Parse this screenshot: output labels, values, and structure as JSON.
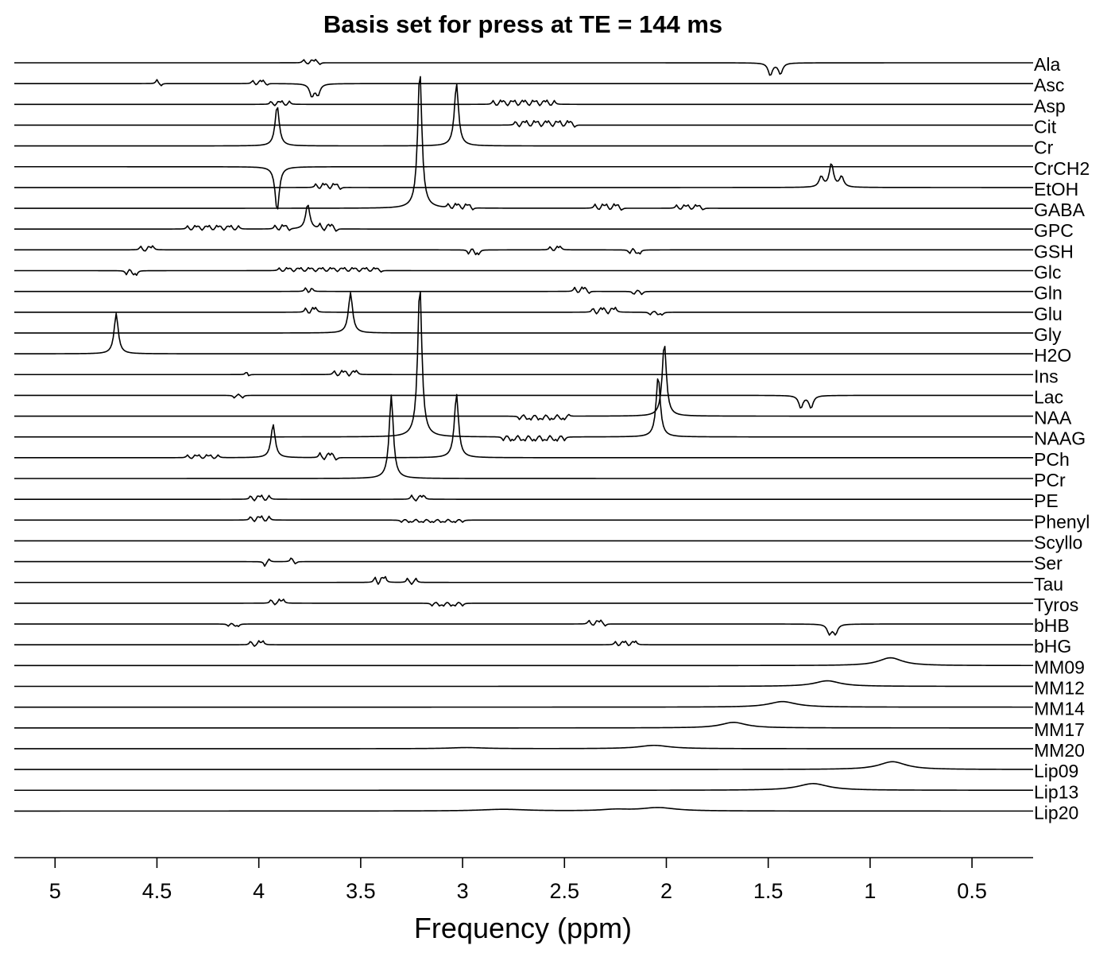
{
  "chart_data": {
    "type": "line",
    "title": "Basis set for press at TE = 144 ms",
    "xlabel": "Frequency (ppm)",
    "ylabel": "",
    "xlim": [
      5.2,
      0.2
    ],
    "x_reversed": true,
    "x_ticks": [
      5,
      4.5,
      4,
      3.5,
      3,
      2.5,
      2,
      1.5,
      1,
      0.5
    ],
    "x_tick_labels": [
      "5",
      "4.5",
      "4",
      "3.5",
      "3",
      "2.5",
      "2",
      "1.5",
      "1",
      "0.5"
    ],
    "grid": false,
    "legend": "none",
    "stacked_offsets": true,
    "series": [
      {
        "name": "Ala",
        "peaks": [
          [
            1.49,
            -0.45,
            0.012
          ],
          [
            1.44,
            -0.4,
            0.012
          ]
        ],
        "clusters": [
          [
            3.78,
            3.7,
            0.12
          ]
        ]
      },
      {
        "name": "Asc",
        "peaks": [
          [
            3.74,
            -0.45,
            0.012
          ],
          [
            3.71,
            -0.4,
            0.012
          ]
        ],
        "clusters": [
          [
            4.5,
            4.48,
            0.15
          ],
          [
            4.03,
            3.96,
            0.12
          ]
        ]
      },
      {
        "name": "Asp",
        "peaks": [],
        "clusters": [
          [
            3.94,
            3.85,
            0.12
          ],
          [
            2.85,
            2.55,
            0.14
          ]
        ]
      },
      {
        "name": "Cit",
        "peaks": [],
        "clusters": [
          [
            2.74,
            2.45,
            0.15
          ]
        ]
      },
      {
        "name": "Cr",
        "peaks": [
          [
            3.91,
            1.45,
            0.012
          ],
          [
            3.03,
            2.25,
            0.012
          ]
        ],
        "clusters": []
      },
      {
        "name": "CrCH2",
        "peaks": [
          [
            3.91,
            -1.6,
            0.012
          ]
        ],
        "clusters": []
      },
      {
        "name": "EtOH",
        "peaks": [
          [
            1.19,
            0.85,
            0.012
          ],
          [
            1.24,
            0.38,
            0.012
          ],
          [
            1.14,
            0.38,
            0.012
          ]
        ],
        "clusters": [
          [
            3.72,
            3.6,
            0.14
          ]
        ]
      },
      {
        "name": "GABA",
        "peaks": [
          [
            3.21,
            5.0,
            0.012
          ]
        ],
        "clusters": [
          [
            3.07,
            2.95,
            0.14
          ],
          [
            2.35,
            2.22,
            0.15
          ],
          [
            1.95,
            1.82,
            0.12
          ]
        ]
      },
      {
        "name": "GPC",
        "peaks": [
          [
            3.76,
            0.9,
            0.012
          ]
        ],
        "clusters": [
          [
            4.35,
            4.1,
            0.12
          ],
          [
            3.92,
            3.85,
            0.14
          ],
          [
            3.7,
            3.62,
            0.18
          ]
        ]
      },
      {
        "name": "GSH",
        "peaks": [],
        "clusters": [
          [
            4.58,
            4.52,
            0.14
          ],
          [
            2.97,
            2.92,
            -0.16
          ],
          [
            2.57,
            2.52,
            0.12
          ],
          [
            2.18,
            2.13,
            -0.14
          ]
        ]
      },
      {
        "name": "Glc",
        "peaks": [],
        "clusters": [
          [
            4.65,
            4.6,
            -0.15
          ],
          [
            3.9,
            3.4,
            0.1
          ]
        ]
      },
      {
        "name": "Gln",
        "peaks": [],
        "clusters": [
          [
            3.77,
            3.74,
            0.14
          ],
          [
            2.45,
            2.38,
            0.15
          ],
          [
            2.16,
            2.12,
            -0.12
          ]
        ]
      },
      {
        "name": "Glu",
        "peaks": [],
        "clusters": [
          [
            3.77,
            3.72,
            0.16
          ],
          [
            2.36,
            2.25,
            0.16
          ],
          [
            2.08,
            2.02,
            -0.1
          ]
        ]
      },
      {
        "name": "Gly",
        "peaks": [
          [
            3.55,
            1.45,
            0.012
          ]
        ],
        "clusters": []
      },
      {
        "name": "H2O",
        "peaks": [
          [
            4.7,
            1.45,
            0.012
          ]
        ],
        "clusters": []
      },
      {
        "name": "Ins",
        "peaks": [],
        "clusters": [
          [
            4.06,
            4.05,
            0.12
          ],
          [
            3.63,
            3.52,
            0.14
          ]
        ]
      },
      {
        "name": "Lac",
        "peaks": [
          [
            1.34,
            -0.45,
            0.012
          ],
          [
            1.29,
            -0.45,
            0.012
          ]
        ],
        "clusters": [
          [
            4.12,
            4.08,
            -0.1
          ]
        ]
      },
      {
        "name": "NAA",
        "peaks": [
          [
            2.01,
            2.65,
            0.012
          ]
        ],
        "clusters": [
          [
            2.72,
            2.48,
            -0.13
          ]
        ]
      },
      {
        "name": "NAAG",
        "peaks": [
          [
            3.21,
            5.5,
            0.012
          ],
          [
            2.04,
            2.2,
            0.012
          ]
        ],
        "clusters": [
          [
            2.8,
            2.5,
            -0.14
          ]
        ]
      },
      {
        "name": "PCh",
        "peaks": [
          [
            3.93,
            1.2,
            0.012
          ],
          [
            3.03,
            2.3,
            0.012
          ]
        ],
        "clusters": [
          [
            4.35,
            4.2,
            0.1
          ],
          [
            3.7,
            3.62,
            0.18
          ]
        ]
      },
      {
        "name": "PCr",
        "peaks": [
          [
            3.35,
            3.0,
            0.012
          ]
        ],
        "clusters": []
      },
      {
        "name": "PE",
        "peaks": [],
        "clusters": [
          [
            4.04,
            3.95,
            0.14
          ],
          [
            3.25,
            3.19,
            0.15
          ]
        ]
      },
      {
        "name": "Phenyl",
        "peaks": [],
        "clusters": [
          [
            4.04,
            3.95,
            0.14
          ],
          [
            3.3,
            3.0,
            -0.08
          ]
        ]
      },
      {
        "name": "Scyllo",
        "peaks": [],
        "clusters": []
      },
      {
        "name": "Ser",
        "peaks": [],
        "clusters": [
          [
            3.97,
            3.95,
            -0.18
          ],
          [
            3.84,
            3.82,
            0.16
          ]
        ]
      },
      {
        "name": "Tau",
        "peaks": [],
        "clusters": [
          [
            3.43,
            3.38,
            0.2
          ],
          [
            3.27,
            3.23,
            0.16
          ]
        ]
      },
      {
        "name": "Tyros",
        "peaks": [],
        "clusters": [
          [
            3.94,
            3.88,
            0.14
          ],
          [
            3.15,
            3.0,
            -0.1
          ]
        ]
      },
      {
        "name": "bHB",
        "peaks": [
          [
            1.2,
            -0.35,
            0.012
          ],
          [
            1.17,
            -0.35,
            0.012
          ]
        ],
        "clusters": [
          [
            2.38,
            2.3,
            0.14
          ],
          [
            4.15,
            4.1,
            -0.08
          ]
        ]
      },
      {
        "name": "bHG",
        "peaks": [],
        "clusters": [
          [
            4.04,
            3.98,
            0.14
          ],
          [
            2.25,
            2.15,
            0.12
          ]
        ]
      },
      {
        "name": "MM09",
        "peaks": [
          [
            0.9,
            0.28,
            0.07
          ]
        ],
        "clusters": []
      },
      {
        "name": "MM12",
        "peaks": [
          [
            1.21,
            0.2,
            0.075
          ]
        ],
        "clusters": []
      },
      {
        "name": "MM14",
        "peaks": [
          [
            1.43,
            0.2,
            0.08
          ]
        ],
        "clusters": []
      },
      {
        "name": "MM17",
        "peaks": [
          [
            1.67,
            0.2,
            0.075
          ]
        ],
        "clusters": []
      },
      {
        "name": "MM20",
        "peaks": [
          [
            2.06,
            0.12,
            0.09
          ],
          [
            2.98,
            0.04,
            0.1
          ]
        ],
        "clusters": []
      },
      {
        "name": "Lip09",
        "peaks": [
          [
            0.89,
            0.28,
            0.08
          ]
        ],
        "clusters": []
      },
      {
        "name": "Lip13",
        "peaks": [
          [
            1.28,
            0.24,
            0.09
          ]
        ],
        "clusters": []
      },
      {
        "name": "Lip20",
        "peaks": [
          [
            2.04,
            0.12,
            0.1
          ],
          [
            2.8,
            0.06,
            0.14
          ],
          [
            2.25,
            0.05,
            0.08
          ]
        ],
        "clusters": []
      }
    ]
  }
}
